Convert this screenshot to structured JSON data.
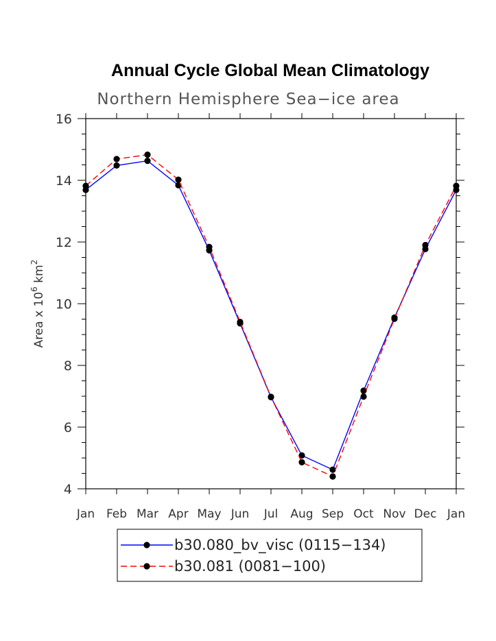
{
  "chart_data": {
    "type": "line",
    "title": "Annual Cycle Global Mean Climatology",
    "subtitle": "Northern Hemisphere Sea−ice area",
    "ylabel": {
      "base": "Area x 10",
      "exp": "6",
      "unit": " km",
      "unit_exp": "2"
    },
    "xlabel": "",
    "categories": [
      "Jan",
      "Feb",
      "Mar",
      "Apr",
      "May",
      "Jun",
      "Jul",
      "Aug",
      "Sep",
      "Oct",
      "Nov",
      "Dec",
      "Jan"
    ],
    "ylim": [
      4,
      16
    ],
    "yticks": [
      4,
      6,
      8,
      10,
      12,
      14,
      16
    ],
    "grid": false,
    "legend_position": "bottom-center",
    "series": [
      {
        "name": "b30.080_bv_visc (0115−134)",
        "color": "#0000ff",
        "dash": "solid",
        "values": [
          13.69,
          14.48,
          14.63,
          13.84,
          11.73,
          9.36,
          6.97,
          5.08,
          4.62,
          7.18,
          9.55,
          11.77,
          13.69
        ]
      },
      {
        "name": "b30.081 (0081−100)",
        "color": "#ff0000",
        "dash": "dashed",
        "values": [
          13.82,
          14.69,
          14.83,
          14.02,
          11.84,
          9.41,
          6.98,
          4.86,
          4.4,
          6.99,
          9.51,
          11.9,
          13.82
        ]
      }
    ]
  }
}
